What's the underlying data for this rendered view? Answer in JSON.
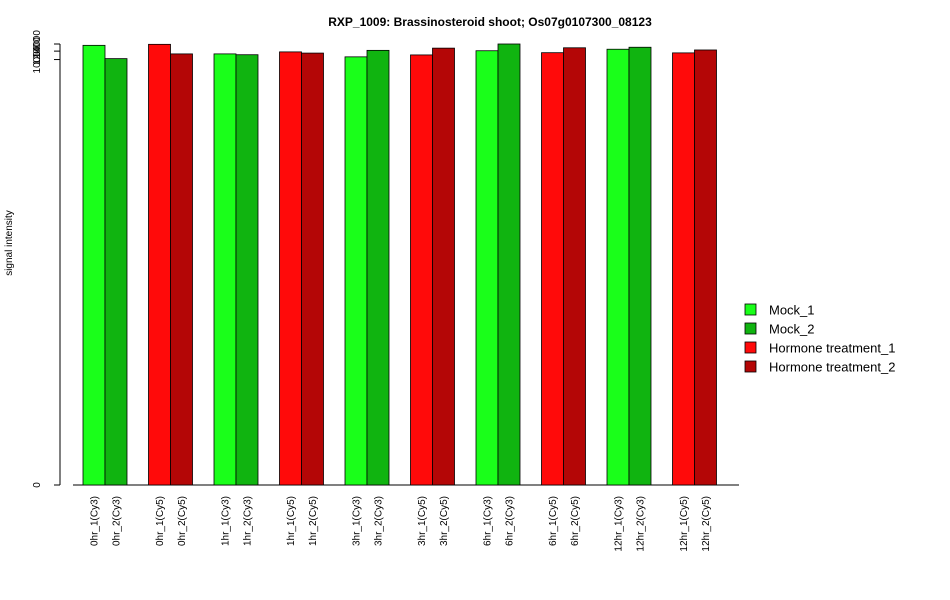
{
  "chart_data": {
    "type": "bar",
    "title": "RXP_1009: Brassinosteroid shoot; Os07g0107300_08123",
    "xlabel": "",
    "ylabel": "signal intensity",
    "y_scale": "log",
    "ylim": [
      0,
      14000
    ],
    "y_ticks": [
      0,
      10000,
      12000,
      14000
    ],
    "y_tick_labels": [
      "0",
      "10000",
      "12000",
      "14000"
    ],
    "grid": false,
    "legend_position": "right",
    "legend": [
      {
        "name": "Mock_1",
        "color": "#1aff1a"
      },
      {
        "name": "Mock_2",
        "color": "#10b410"
      },
      {
        "name": "Hormone treatment_1",
        "color": "#ff0a0a"
      },
      {
        "name": "Hormone treatment_2",
        "color": "#b40606"
      }
    ],
    "categories": [
      "0hr_1(Cy3)",
      "0hr_2(Cy3)",
      "0hr_1(Cy5)",
      "0hr_2(Cy5)",
      "1hr_1(Cy3)",
      "1hr_2(Cy3)",
      "1hr_1(Cy5)",
      "1hr_2(Cy5)",
      "3hr_1(Cy3)",
      "3hr_2(Cy3)",
      "3hr_1(Cy5)",
      "3hr_2(Cy5)",
      "6hr_1(Cy3)",
      "6hr_2(Cy3)",
      "6hr_1(Cy5)",
      "6hr_2(Cy5)",
      "12hr_1(Cy3)",
      "12hr_2(Cy3)",
      "12hr_1(Cy5)",
      "12hr_2(Cy5)"
    ],
    "values": [
      13600,
      10200,
      13900,
      11300,
      11300,
      11100,
      11800,
      11500,
      10600,
      12200,
      11050,
      12800,
      12100,
      14000,
      11600,
      12900,
      12500,
      13050,
      11550,
      12300
    ],
    "bar_colors": [
      "#1aff1a",
      "#10b410",
      "#ff0a0a",
      "#b40606",
      "#1aff1a",
      "#10b410",
      "#ff0a0a",
      "#b40606",
      "#1aff1a",
      "#10b410",
      "#ff0a0a",
      "#b40606",
      "#1aff1a",
      "#10b410",
      "#ff0a0a",
      "#b40606",
      "#1aff1a",
      "#10b410",
      "#ff0a0a",
      "#b40606"
    ]
  }
}
